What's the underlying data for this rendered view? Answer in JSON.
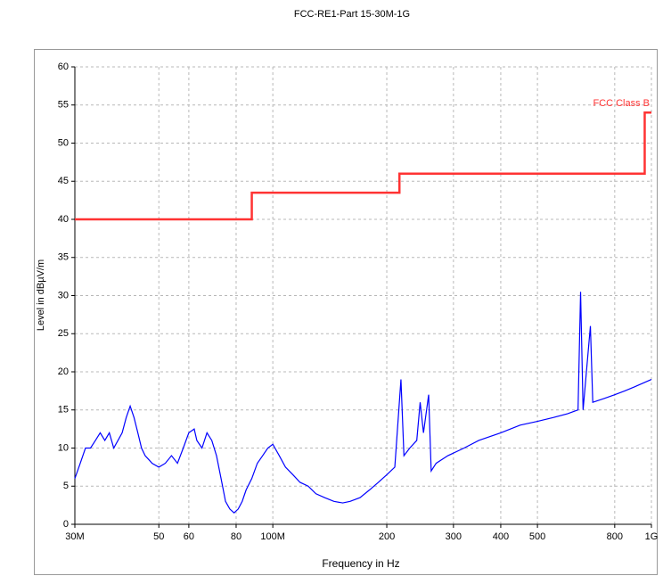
{
  "chart_data": {
    "type": "line",
    "title": "FCC-RE1-Part 15-30M-1G",
    "xlabel": "Frequency in Hz",
    "ylabel": "Level in dBµV/m",
    "xscale": "log",
    "grid": true,
    "xlim": [
      30000000,
      1000000000
    ],
    "ylim": [
      0,
      60
    ],
    "xticks": [
      {
        "value": 30000000,
        "label": "30M"
      },
      {
        "value": 50000000,
        "label": "50"
      },
      {
        "value": 60000000,
        "label": "60"
      },
      {
        "value": 80000000,
        "label": "80"
      },
      {
        "value": 100000000,
        "label": "100M"
      },
      {
        "value": 200000000,
        "label": "200"
      },
      {
        "value": 300000000,
        "label": "300"
      },
      {
        "value": 400000000,
        "label": "400"
      },
      {
        "value": 500000000,
        "label": "500"
      },
      {
        "value": 800000000,
        "label": "800"
      },
      {
        "value": 1000000000,
        "label": "1G"
      }
    ],
    "yticks": [
      0,
      5,
      10,
      15,
      20,
      25,
      30,
      35,
      40,
      45,
      50,
      55,
      60
    ],
    "series": [
      {
        "color": "#0000ff",
        "x": [
          30000000,
          31000000,
          32000000,
          33000000,
          34000000,
          35000000,
          36000000,
          37000000,
          38000000,
          39000000,
          40000000,
          41000000,
          42000000,
          43000000,
          44000000,
          45000000,
          46000000,
          47000000,
          48000000,
          50000000,
          52000000,
          54000000,
          56000000,
          58000000,
          60000000,
          62000000,
          63000000,
          65000000,
          67000000,
          69000000,
          71000000,
          73000000,
          75000000,
          77000000,
          79000000,
          81000000,
          83000000,
          85000000,
          88000000,
          91000000,
          94000000,
          97000000,
          100000000,
          104000000,
          108000000,
          113000000,
          118000000,
          124000000,
          130000000,
          137000000,
          145000000,
          153000000,
          160000000,
          170000000,
          180000000,
          190000000,
          200000000,
          210000000,
          218000000,
          222000000,
          230000000,
          240000000,
          245000000,
          250000000,
          258000000,
          262000000,
          270000000,
          290000000,
          320000000,
          350000000,
          400000000,
          450000000,
          500000000,
          550000000,
          600000000,
          640000000,
          650000000,
          660000000,
          690000000,
          700000000,
          750000000,
          800000000,
          850000000,
          900000000,
          1000000000
        ],
        "values": [
          6,
          8,
          10,
          10,
          11,
          12,
          11,
          12,
          10,
          11,
          12,
          14,
          15.5,
          14,
          12,
          10,
          9,
          8.5,
          8,
          7.5,
          8,
          9,
          8,
          10,
          12,
          12.5,
          11,
          10,
          12,
          11,
          9,
          6,
          3,
          2,
          1.5,
          2,
          3,
          4.5,
          6,
          8,
          9,
          10,
          10.5,
          9,
          7.5,
          6.5,
          5.5,
          5,
          4,
          3.5,
          3,
          2.8,
          3,
          3.5,
          4.5,
          5.5,
          6.5,
          7.5,
          19,
          9,
          10,
          11,
          16,
          12,
          17,
          7,
          8,
          9,
          10,
          11,
          12,
          13,
          13.5,
          14,
          14.5,
          15,
          30.5,
          15,
          26,
          16,
          16.5,
          17,
          17.5,
          18,
          19
        ]
      },
      {
        "name": "FCC Class B",
        "color": "#ff3333",
        "x": [
          30000000,
          88000000,
          88000000,
          216000000,
          216000000,
          960000000,
          960000000,
          1000000000
        ],
        "values": [
          40,
          40,
          43.5,
          43.5,
          46,
          46,
          54,
          54
        ]
      }
    ]
  }
}
